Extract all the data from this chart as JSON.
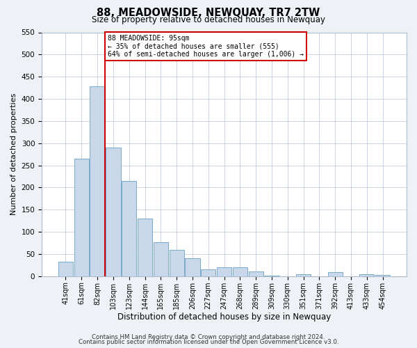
{
  "title": "88, MEADOWSIDE, NEWQUAY, TR7 2TW",
  "subtitle": "Size of property relative to detached houses in Newquay",
  "xlabel": "Distribution of detached houses by size in Newquay",
  "ylabel": "Number of detached properties",
  "bar_labels": [
    "41sqm",
    "61sqm",
    "82sqm",
    "103sqm",
    "123sqm",
    "144sqm",
    "165sqm",
    "185sqm",
    "206sqm",
    "227sqm",
    "247sqm",
    "268sqm",
    "289sqm",
    "309sqm",
    "330sqm",
    "351sqm",
    "371sqm",
    "392sqm",
    "413sqm",
    "433sqm",
    "454sqm"
  ],
  "bar_values": [
    32,
    265,
    428,
    290,
    215,
    130,
    76,
    59,
    40,
    15,
    20,
    20,
    10,
    1,
    0,
    4,
    0,
    9,
    0,
    5,
    3
  ],
  "bar_color": "#c8d8ea",
  "bar_edgecolor": "#7aaac8",
  "vline_color": "#cc0000",
  "annotation_text": "88 MEADOWSIDE: 95sqm\n← 35% of detached houses are smaller (555)\n64% of semi-detached houses are larger (1,006) →",
  "annotation_box_color": "#ffffff",
  "annotation_box_edgecolor": "#cc0000",
  "ylim": [
    0,
    550
  ],
  "yticks": [
    0,
    50,
    100,
    150,
    200,
    250,
    300,
    350,
    400,
    450,
    500,
    550
  ],
  "footer_line1": "Contains HM Land Registry data © Crown copyright and database right 2024.",
  "footer_line2": "Contains public sector information licensed under the Open Government Licence v3.0.",
  "bg_color": "#eef2f7",
  "plot_bg_color": "#ffffff",
  "grid_color": "#c0ccdd"
}
